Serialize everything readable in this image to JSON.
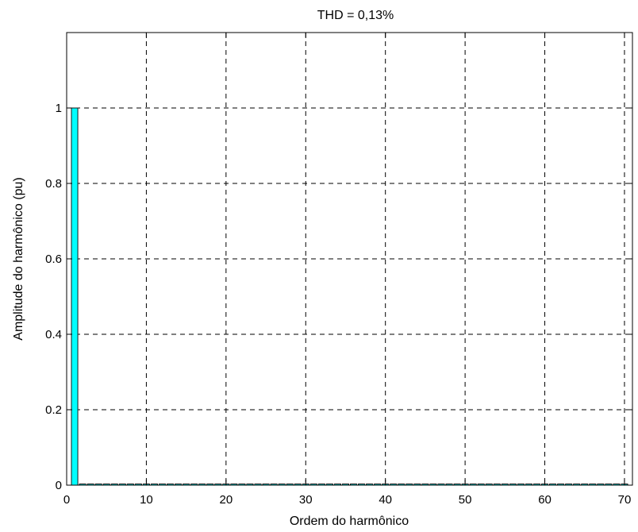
{
  "chart_data": {
    "type": "bar",
    "title": "THD = 0,13%",
    "xlabel": "Ordem do harmônico",
    "ylabel": "Amplitude do harmônico (pu)",
    "xlim": [
      0,
      71
    ],
    "ylim": [
      0,
      1.2
    ],
    "xticks": [
      0,
      10,
      20,
      30,
      40,
      50,
      60,
      70
    ],
    "yticks": [
      0,
      0.2,
      0.4,
      0.6,
      0.8,
      1
    ],
    "ytick_labels": [
      "0",
      "0.2",
      "0.4",
      "0.6",
      "0.8",
      "1"
    ],
    "grid": true,
    "bar_color": "#00FFFF",
    "x": [
      1,
      2,
      3,
      4,
      5,
      6,
      7,
      8,
      9,
      10,
      11,
      12,
      13,
      14,
      15,
      16,
      17,
      18,
      19,
      20,
      21,
      22,
      23,
      24,
      25,
      26,
      27,
      28,
      29,
      30,
      31,
      32,
      33,
      34,
      35,
      36,
      37,
      38,
      39,
      40,
      41,
      42,
      43,
      44,
      45,
      46,
      47,
      48,
      49,
      50,
      51,
      52,
      53,
      54,
      55,
      56,
      57,
      58,
      59,
      60,
      61,
      62,
      63,
      64,
      65,
      66,
      67,
      68,
      69,
      70
    ],
    "values": [
      1,
      0.001,
      0.001,
      0.001,
      0.001,
      0.001,
      0.001,
      0.001,
      0.001,
      0.001,
      0.001,
      0.001,
      0.001,
      0.001,
      0.001,
      0.001,
      0.001,
      0.001,
      0.001,
      0.001,
      0.001,
      0.001,
      0.001,
      0.001,
      0.001,
      0.001,
      0.001,
      0.001,
      0.001,
      0.001,
      0.001,
      0.001,
      0.001,
      0.001,
      0.001,
      0.001,
      0.001,
      0.001,
      0.001,
      0.001,
      0.001,
      0.001,
      0.001,
      0.001,
      0.001,
      0.001,
      0.001,
      0.001,
      0.001,
      0.001,
      0.001,
      0.001,
      0.001,
      0.001,
      0.001,
      0.001,
      0.001,
      0.001,
      0.001,
      0.001,
      0.001,
      0.001,
      0.001,
      0.001,
      0.001,
      0.001,
      0.001,
      0.001,
      0.001,
      0.001
    ]
  }
}
